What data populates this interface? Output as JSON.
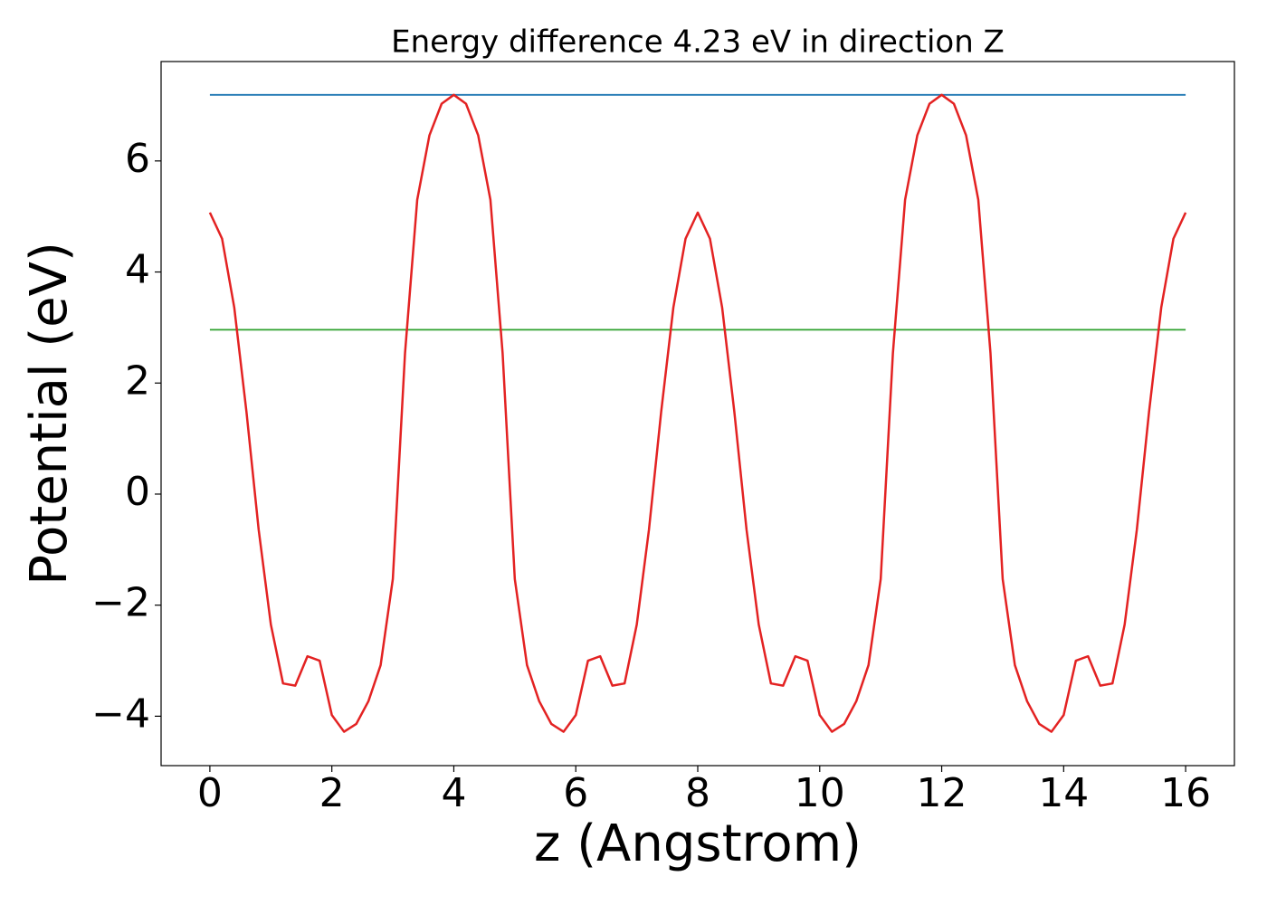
{
  "chart_data": {
    "type": "line",
    "title": "Energy difference 4.23 eV in direction Z",
    "x_label": "z (Angstrom)",
    "y_label": "Potential (eV)",
    "xlim": [
      -0.8,
      16.8
    ],
    "ylim": [
      -4.89,
      7.79
    ],
    "xticks": [
      0,
      2,
      4,
      6,
      8,
      10,
      12,
      14,
      16
    ],
    "yticks": [
      {
        "value": -4,
        "label": "−4"
      },
      {
        "value": -2,
        "label": "−2"
      },
      0,
      2,
      4,
      6
    ],
    "grid": false,
    "series": [
      {
        "color": "#1f77b4",
        "x": [
          0,
          16
        ],
        "values": [
          7.19,
          7.19
        ]
      },
      {
        "color": "#2ca02c",
        "x": [
          0,
          16
        ],
        "values": [
          2.96,
          2.96
        ]
      },
      {
        "color": "#e32222",
        "x": [
          0,
          0.2,
          0.4,
          0.6,
          0.8,
          1,
          1.2,
          1.4,
          1.6,
          1.8,
          2,
          2.2,
          2.4,
          2.6,
          2.8,
          3,
          3.2,
          3.4,
          3.6,
          3.8,
          4,
          4.2,
          4.4,
          4.6,
          4.8,
          5,
          5.2,
          5.4,
          5.6,
          5.8,
          6,
          6.2,
          6.4,
          6.6,
          6.8,
          7,
          7.2,
          7.4,
          7.6,
          7.8,
          8,
          8.2,
          8.4,
          8.6,
          8.8,
          9,
          9.2,
          9.4,
          9.6,
          9.8,
          10,
          10.2,
          10.4,
          10.6,
          10.8,
          11,
          11.2,
          11.4,
          11.6,
          11.8,
          12,
          12.2,
          12.4,
          12.6,
          12.8,
          13,
          13.2,
          13.4,
          13.6,
          13.8,
          14,
          14.2,
          14.4,
          14.6,
          14.8,
          15,
          15.2,
          15.4,
          15.6,
          15.8,
          16
        ],
        "values": [
          5.07,
          4.6,
          3.36,
          1.48,
          -0.64,
          -2.35,
          -3.41,
          -3.45,
          -2.92,
          -3.0,
          -3.98,
          -4.28,
          -4.14,
          -3.73,
          -3.08,
          -1.53,
          2.54,
          5.3,
          6.46,
          7.03,
          7.19,
          7.03,
          6.46,
          5.3,
          2.54,
          -1.53,
          -3.08,
          -3.73,
          -4.14,
          -4.28,
          -3.98,
          -3.0,
          -2.92,
          -3.45,
          -3.41,
          -2.35,
          -0.64,
          1.48,
          3.36,
          4.6,
          5.07,
          4.6,
          3.36,
          1.48,
          -0.64,
          -2.35,
          -3.41,
          -3.45,
          -2.92,
          -3.0,
          -3.98,
          -4.28,
          -4.14,
          -3.73,
          -3.08,
          -1.53,
          2.54,
          5.3,
          6.46,
          7.03,
          7.19,
          7.03,
          6.46,
          5.3,
          2.54,
          -1.53,
          -3.08,
          -3.73,
          -4.14,
          -4.28,
          -3.98,
          -3.0,
          -2.92,
          -3.45,
          -3.41,
          -2.35,
          -0.64,
          1.48,
          3.36,
          4.6,
          5.07
        ]
      }
    ]
  }
}
